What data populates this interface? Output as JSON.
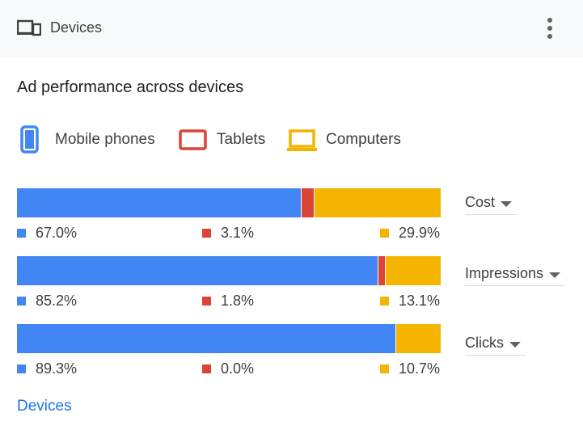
{
  "header": {
    "title": "Devices"
  },
  "section_title": "Ad performance across devices",
  "legend": [
    {
      "label": "Mobile phones",
      "icon": "mobile-phone-icon",
      "color": "#4285f4"
    },
    {
      "label": "Tablets",
      "icon": "tablet-icon",
      "color": "#db4437"
    },
    {
      "label": "Computers",
      "icon": "laptop-icon",
      "color": "#f4b400"
    }
  ],
  "metrics": [
    {
      "name": "Cost",
      "labels": [
        "67.0%",
        "3.1%",
        "29.9%"
      ]
    },
    {
      "name": "Impressions",
      "labels": [
        "85.2%",
        "1.8%",
        "13.1%"
      ]
    },
    {
      "name": "Clicks",
      "labels": [
        "89.3%",
        "0.0%",
        "10.7%"
      ]
    }
  ],
  "footer_link": "Devices",
  "chart_data": {
    "type": "bar",
    "stacked": true,
    "orientation": "horizontal",
    "title": "Ad performance across devices",
    "categories": [
      "Cost",
      "Impressions",
      "Clicks"
    ],
    "series": [
      {
        "name": "Mobile phones",
        "color": "#4285f4",
        "values": [
          67.0,
          85.2,
          89.3
        ]
      },
      {
        "name": "Tablets",
        "color": "#db4437",
        "values": [
          3.1,
          1.8,
          0.0
        ]
      },
      {
        "name": "Computers",
        "color": "#f4b400",
        "values": [
          29.9,
          13.1,
          10.7
        ]
      }
    ],
    "xlim": [
      0,
      100
    ],
    "grid": false,
    "legend_position": "top"
  }
}
